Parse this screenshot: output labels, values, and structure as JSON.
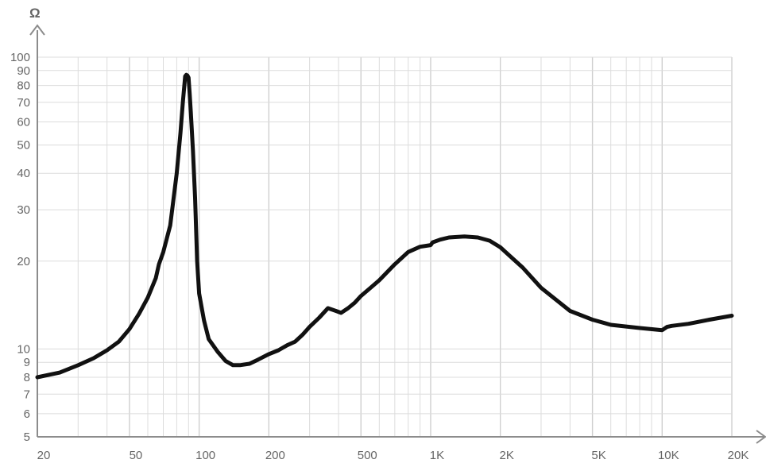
{
  "chart_data": {
    "type": "line",
    "title": "",
    "xlabel": "",
    "ylabel": "Ω",
    "x_scale": "log",
    "y_scale": "log",
    "xlim": [
      20,
      20000
    ],
    "ylim": [
      5,
      100
    ],
    "grid": true,
    "x_ticks": [
      {
        "value": 20,
        "label": "20"
      },
      {
        "value": 50,
        "label": "50"
      },
      {
        "value": 100,
        "label": "100"
      },
      {
        "value": 200,
        "label": "200"
      },
      {
        "value": 500,
        "label": "500"
      },
      {
        "value": 1000,
        "label": "1K"
      },
      {
        "value": 2000,
        "label": "2K"
      },
      {
        "value": 5000,
        "label": "5K"
      },
      {
        "value": 10000,
        "label": "10K"
      },
      {
        "value": 20000,
        "label": "20K"
      }
    ],
    "y_ticks": [
      {
        "value": 5,
        "label": "5"
      },
      {
        "value": 6,
        "label": "6"
      },
      {
        "value": 7,
        "label": "7"
      },
      {
        "value": 8,
        "label": "8"
      },
      {
        "value": 9,
        "label": "9"
      },
      {
        "value": 10,
        "label": "10"
      },
      {
        "value": 20,
        "label": "20"
      },
      {
        "value": 30,
        "label": "30"
      },
      {
        "value": 40,
        "label": "40"
      },
      {
        "value": 50,
        "label": "50"
      },
      {
        "value": 60,
        "label": "60"
      },
      {
        "value": 70,
        "label": "70"
      },
      {
        "value": 80,
        "label": "80"
      },
      {
        "value": 90,
        "label": "90"
      },
      {
        "value": 100,
        "label": "100"
      }
    ],
    "series": [
      {
        "color": "#111111",
        "x": [
          20,
          25,
          30,
          35,
          40,
          45,
          50,
          55,
          60,
          65,
          67,
          70,
          75,
          80,
          83,
          85,
          87,
          88,
          89,
          90,
          91,
          92,
          94,
          96,
          98,
          100,
          105,
          110,
          120,
          130,
          140,
          150,
          165,
          180,
          200,
          220,
          240,
          260,
          280,
          300,
          330,
          360,
          390,
          410,
          440,
          470,
          500,
          550,
          600,
          700,
          800,
          900,
          1000,
          1020,
          1100,
          1200,
          1400,
          1600,
          1800,
          2000,
          2500,
          3000,
          4000,
          5000,
          6000,
          8000,
          10000,
          10500,
          11000,
          13000,
          16000,
          20000
        ],
        "values": [
          8.0,
          8.3,
          8.8,
          9.3,
          9.9,
          10.6,
          11.7,
          13.2,
          15.0,
          17.5,
          19.5,
          21.5,
          26.5,
          40.0,
          55.0,
          70.0,
          86.0,
          87.0,
          86.5,
          85.0,
          75.0,
          65.0,
          48.0,
          33.0,
          20.0,
          15.5,
          12.5,
          10.8,
          9.8,
          9.1,
          8.8,
          8.8,
          8.9,
          9.2,
          9.6,
          9.9,
          10.3,
          10.6,
          11.2,
          11.9,
          12.8,
          13.8,
          13.5,
          13.3,
          13.8,
          14.4,
          15.2,
          16.2,
          17.2,
          19.5,
          21.5,
          22.4,
          22.7,
          23.2,
          23.7,
          24.1,
          24.3,
          24.1,
          23.5,
          22.3,
          19.0,
          16.2,
          13.5,
          12.6,
          12.1,
          11.8,
          11.6,
          11.9,
          12.0,
          12.2,
          12.6,
          13.0
        ]
      }
    ]
  }
}
